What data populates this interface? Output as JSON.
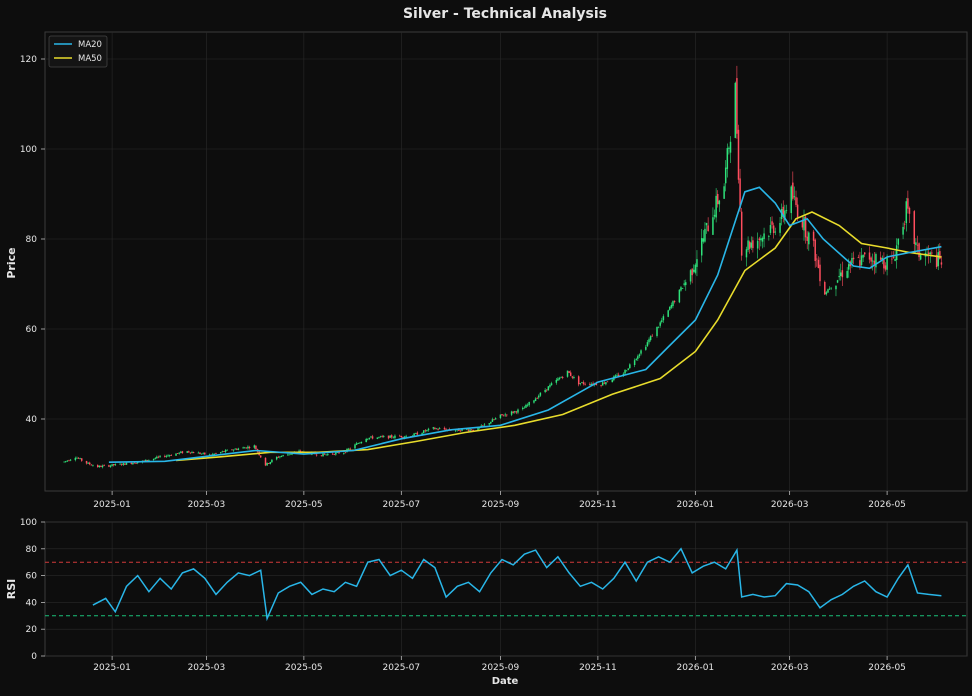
{
  "chart_data": [
    {
      "type": "candlestick",
      "title": "Silver - Technical Analysis",
      "xlabel": "",
      "ylabel": "Price",
      "ylim": [
        24,
        126
      ],
      "yticks": [
        40,
        60,
        80,
        100,
        120
      ],
      "xticks": [
        "2025-01",
        "2025-03",
        "2025-05",
        "2025-07",
        "2025-09",
        "2025-11",
        "2026-01",
        "2026-03",
        "2026-05"
      ],
      "xrange": [
        "2024-11-20",
        "2026-06-20"
      ],
      "grid": true,
      "legend": {
        "position": "top-left",
        "entries": [
          "MA20",
          "MA50"
        ]
      },
      "colors": {
        "up": "#2ee27a",
        "down": "#ff4d5e",
        "ma20": "#29b6e8",
        "ma50": "#e8dc2c"
      },
      "price_path": [
        [
          "2024-12-02",
          30.5
        ],
        [
          "2024-12-09",
          31.6
        ],
        [
          "2024-12-16",
          30.2
        ],
        [
          "2024-12-23",
          29.4
        ],
        [
          "2025-01-06",
          29.9
        ],
        [
          "2025-01-20",
          30.6
        ],
        [
          "2025-02-03",
          31.8
        ],
        [
          "2025-02-17",
          32.8
        ],
        [
          "2025-03-03",
          32.0
        ],
        [
          "2025-03-17",
          33.2
        ],
        [
          "2025-03-31",
          34.0
        ],
        [
          "2025-04-07",
          29.8
        ],
        [
          "2025-04-14",
          31.5
        ],
        [
          "2025-04-28",
          32.8
        ],
        [
          "2025-05-12",
          32.0
        ],
        [
          "2025-05-26",
          32.6
        ],
        [
          "2025-06-09",
          35.8
        ],
        [
          "2025-06-23",
          36.0
        ],
        [
          "2025-07-07",
          36.3
        ],
        [
          "2025-07-21",
          37.9
        ],
        [
          "2025-08-04",
          37.5
        ],
        [
          "2025-08-18",
          37.8
        ],
        [
          "2025-09-01",
          40.7
        ],
        [
          "2025-09-15",
          42.2
        ],
        [
          "2025-09-29",
          46.5
        ],
        [
          "2025-10-13",
          50.5
        ],
        [
          "2025-10-20",
          48.0
        ],
        [
          "2025-11-03",
          47.8
        ],
        [
          "2025-11-17",
          50.2
        ],
        [
          "2025-12-01",
          56.5
        ],
        [
          "2025-12-15",
          64.0
        ],
        [
          "2025-12-29",
          72.5
        ],
        [
          "2026-01-12",
          86.0
        ],
        [
          "2026-01-19",
          92.0
        ],
        [
          "2026-01-26",
          113.0
        ],
        [
          "2026-01-30",
          78.0
        ],
        [
          "2026-02-09",
          80.0
        ],
        [
          "2026-02-23",
          84.0
        ],
        [
          "2026-03-02",
          90.0
        ],
        [
          "2026-03-09",
          84.0
        ],
        [
          "2026-03-16",
          78.0
        ],
        [
          "2026-03-23",
          68.0
        ],
        [
          "2026-04-06",
          74.0
        ],
        [
          "2026-04-20",
          76.0
        ],
        [
          "2026-05-04",
          74.5
        ],
        [
          "2026-05-13",
          86.5
        ],
        [
          "2026-05-20",
          77.0
        ],
        [
          "2026-06-04",
          75.0
        ]
      ],
      "series": [
        {
          "name": "MA20",
          "points": [
            [
              "2024-12-30",
              30.4
            ],
            [
              "2025-02-03",
              30.6
            ],
            [
              "2025-03-03",
              31.8
            ],
            [
              "2025-04-01",
              33.0
            ],
            [
              "2025-05-01",
              32.2
            ],
            [
              "2025-06-01",
              33.0
            ],
            [
              "2025-07-01",
              35.6
            ],
            [
              "2025-08-01",
              37.6
            ],
            [
              "2025-09-01",
              38.6
            ],
            [
              "2025-10-01",
              42.0
            ],
            [
              "2025-11-01",
              48.2
            ],
            [
              "2025-12-01",
              51.0
            ],
            [
              "2025-12-15",
              56.0
            ],
            [
              "2026-01-01",
              62.0
            ],
            [
              "2026-01-15",
              72.0
            ],
            [
              "2026-02-01",
              90.5
            ],
            [
              "2026-02-10",
              91.5
            ],
            [
              "2026-02-20",
              88.0
            ],
            [
              "2026-03-01",
              83.0
            ],
            [
              "2026-03-12",
              84.5
            ],
            [
              "2026-03-22",
              80.0
            ],
            [
              "2026-04-10",
              74.0
            ],
            [
              "2026-04-20",
              73.5
            ],
            [
              "2026-05-01",
              76.0
            ],
            [
              "2026-05-15",
              77.0
            ],
            [
              "2026-06-04",
              78.3
            ]
          ]
        },
        {
          "name": "MA50",
          "points": [
            [
              "2025-02-10",
              30.8
            ],
            [
              "2025-03-10",
              31.6
            ],
            [
              "2025-04-10",
              32.6
            ],
            [
              "2025-05-10",
              32.6
            ],
            [
              "2025-06-10",
              33.2
            ],
            [
              "2025-07-10",
              35.0
            ],
            [
              "2025-08-10",
              37.0
            ],
            [
              "2025-09-10",
              38.6
            ],
            [
              "2025-10-10",
              41.0
            ],
            [
              "2025-11-10",
              45.5
            ],
            [
              "2025-12-10",
              49.0
            ],
            [
              "2026-01-01",
              55.0
            ],
            [
              "2026-01-15",
              62.0
            ],
            [
              "2026-02-01",
              73.0
            ],
            [
              "2026-02-20",
              78.0
            ],
            [
              "2026-03-05",
              84.5
            ],
            [
              "2026-03-15",
              86.0
            ],
            [
              "2026-04-01",
              83.0
            ],
            [
              "2026-04-15",
              79.0
            ],
            [
              "2026-05-01",
              78.0
            ],
            [
              "2026-05-15",
              77.0
            ],
            [
              "2026-06-04",
              76.0
            ]
          ]
        }
      ]
    },
    {
      "type": "line",
      "xlabel": "Date",
      "ylabel": "RSI",
      "ylim": [
        0,
        100
      ],
      "yticks": [
        0,
        20,
        40,
        60,
        80,
        100
      ],
      "xticks": [
        "2025-01",
        "2025-03",
        "2025-05",
        "2025-07",
        "2025-09",
        "2025-11",
        "2026-01",
        "2026-03",
        "2026-05"
      ],
      "xrange": [
        "2024-11-20",
        "2026-06-20"
      ],
      "grid": true,
      "colors": {
        "rsi": "#29b6e8",
        "overbought": "#d03a3a",
        "oversold": "#19c27a"
      },
      "reference_lines": [
        70,
        30
      ],
      "series": [
        {
          "name": "RSI",
          "points": [
            [
              "2024-12-20",
              38
            ],
            [
              "2024-12-28",
              43
            ],
            [
              "2025-01-03",
              33
            ],
            [
              "2025-01-10",
              52
            ],
            [
              "2025-01-17",
              60
            ],
            [
              "2025-01-24",
              48
            ],
            [
              "2025-01-31",
              58
            ],
            [
              "2025-02-07",
              50
            ],
            [
              "2025-02-14",
              62
            ],
            [
              "2025-02-21",
              65
            ],
            [
              "2025-02-28",
              58
            ],
            [
              "2025-03-07",
              46
            ],
            [
              "2025-03-14",
              55
            ],
            [
              "2025-03-21",
              62
            ],
            [
              "2025-03-28",
              60
            ],
            [
              "2025-04-04",
              64
            ],
            [
              "2025-04-08",
              28
            ],
            [
              "2025-04-15",
              47
            ],
            [
              "2025-04-22",
              52
            ],
            [
              "2025-04-29",
              55
            ],
            [
              "2025-05-06",
              46
            ],
            [
              "2025-05-13",
              50
            ],
            [
              "2025-05-20",
              48
            ],
            [
              "2025-05-27",
              55
            ],
            [
              "2025-06-03",
              52
            ],
            [
              "2025-06-10",
              70
            ],
            [
              "2025-06-17",
              72
            ],
            [
              "2025-06-24",
              60
            ],
            [
              "2025-07-01",
              64
            ],
            [
              "2025-07-08",
              58
            ],
            [
              "2025-07-15",
              72
            ],
            [
              "2025-07-22",
              66
            ],
            [
              "2025-07-29",
              44
            ],
            [
              "2025-08-05",
              52
            ],
            [
              "2025-08-12",
              55
            ],
            [
              "2025-08-19",
              48
            ],
            [
              "2025-08-26",
              62
            ],
            [
              "2025-09-02",
              72
            ],
            [
              "2025-09-09",
              68
            ],
            [
              "2025-09-16",
              76
            ],
            [
              "2025-09-23",
              79
            ],
            [
              "2025-09-30",
              66
            ],
            [
              "2025-10-07",
              74
            ],
            [
              "2025-10-14",
              62
            ],
            [
              "2025-10-21",
              52
            ],
            [
              "2025-10-28",
              55
            ],
            [
              "2025-11-04",
              50
            ],
            [
              "2025-11-11",
              58
            ],
            [
              "2025-11-18",
              70
            ],
            [
              "2025-11-25",
              56
            ],
            [
              "2025-12-02",
              70
            ],
            [
              "2025-12-09",
              74
            ],
            [
              "2025-12-16",
              70
            ],
            [
              "2025-12-23",
              80
            ],
            [
              "2025-12-30",
              62
            ],
            [
              "2026-01-06",
              67
            ],
            [
              "2026-01-13",
              70
            ],
            [
              "2026-01-20",
              65
            ],
            [
              "2026-01-27",
              79
            ],
            [
              "2026-01-30",
              44
            ],
            [
              "2026-02-06",
              46
            ],
            [
              "2026-02-13",
              44
            ],
            [
              "2026-02-20",
              45
            ],
            [
              "2026-02-27",
              54
            ],
            [
              "2026-03-06",
              53
            ],
            [
              "2026-03-13",
              48
            ],
            [
              "2026-03-20",
              36
            ],
            [
              "2026-03-27",
              42
            ],
            [
              "2026-04-03",
              46
            ],
            [
              "2026-04-10",
              52
            ],
            [
              "2026-04-17",
              56
            ],
            [
              "2026-04-24",
              48
            ],
            [
              "2026-05-01",
              44
            ],
            [
              "2026-05-08",
              58
            ],
            [
              "2026-05-14",
              68
            ],
            [
              "2026-05-20",
              47
            ],
            [
              "2026-05-27",
              46
            ],
            [
              "2026-06-04",
              45
            ]
          ]
        }
      ]
    }
  ]
}
